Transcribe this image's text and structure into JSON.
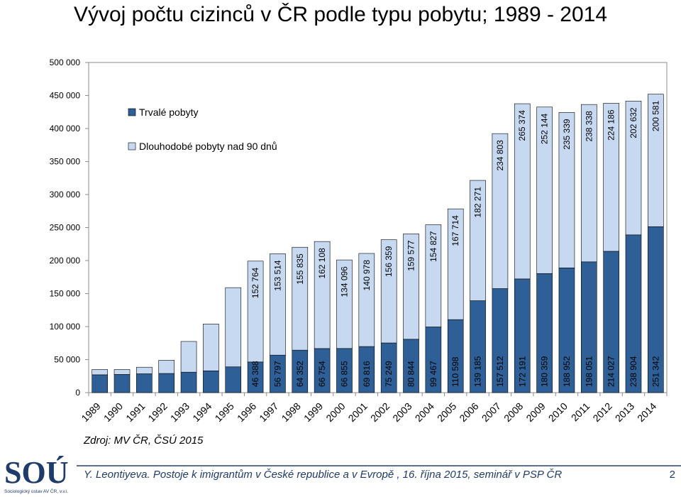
{
  "title": "Vývoj počtu cizinců v ČR podle typu pobytu; 1989 - 2014",
  "source": "Zdroj: MV ČR, ČSÚ 2015",
  "footer": {
    "text": "Y. Leontiyeva. Postoje k imigrantům v České republice a v Evropě , 16. října 2015, seminář v PSP ČR",
    "page_number": "2",
    "logo_subtitle": "Sociologický ústav AV ČR, v.v.i."
  },
  "colors": {
    "permanent": "#2e5f96",
    "long_term": "#c6d9f1",
    "bar_edge": "#000000",
    "axis": "#8c8c8c",
    "logo": "#1f3b6a"
  },
  "chart_data": {
    "type": "bar",
    "stacked": true,
    "title": "Vývoj počtu cizinců v ČR podle typu pobytu; 1989 - 2014",
    "xlabel": "",
    "ylabel": "",
    "ylim": [
      0,
      500000
    ],
    "yticks": [
      0,
      50000,
      100000,
      150000,
      200000,
      250000,
      300000,
      350000,
      400000,
      450000,
      500000
    ],
    "ytick_labels": [
      "0",
      "50 000",
      "100 000",
      "150 000",
      "200 000",
      "250 000",
      "300 000",
      "350 000",
      "400 000",
      "450 000",
      "500 000"
    ],
    "grid": false,
    "legend_position": "top-left",
    "categories": [
      "1989",
      "1990",
      "1991",
      "1992",
      "1993",
      "1994",
      "1995",
      "1996",
      "1997",
      "1998",
      "1999",
      "2000",
      "2001",
      "2002",
      "2003",
      "2004",
      "2005",
      "2006",
      "2007",
      "2008",
      "2009",
      "2010",
      "2011",
      "2012",
      "2013",
      "2014"
    ],
    "series": [
      {
        "name": "Trvalé pobyty",
        "values": [
          27000,
          27500,
          28500,
          29000,
          31000,
          33000,
          39000,
          46388,
          56797,
          64352,
          66754,
          66855,
          69816,
          75249,
          80844,
          99467,
          110598,
          139185,
          157512,
          172191,
          180359,
          188952,
          198051,
          214027,
          238904,
          251342
        ],
        "labels": [
          "",
          "",
          "",
          "",
          "",
          "",
          "",
          "46 388",
          "56 797",
          "64 352",
          "66 754",
          "66 855",
          "69 816",
          "75 249",
          "80 844",
          "99 467",
          "110 598",
          "139 185",
          "157 512",
          "172 191",
          "180 359",
          "188 952",
          "198 051",
          "214 027",
          "238 904",
          "251 342"
        ]
      },
      {
        "name": "Dlouhodobé pobyty nad 90 dnů",
        "values": [
          8000,
          7500,
          10000,
          20000,
          46500,
          71000,
          120000,
          152764,
          153514,
          155835,
          162108,
          134096,
          140978,
          156359,
          159577,
          154827,
          167714,
          182271,
          234803,
          265374,
          252144,
          235339,
          238338,
          224186,
          202632,
          200581
        ],
        "labels": [
          "",
          "",
          "",
          "",
          "",
          "",
          "",
          "152 764",
          "153 514",
          "155 835",
          "162 108",
          "134 096",
          "140 978",
          "156 359",
          "159 577",
          "154 827",
          "167 714",
          "182 271",
          "234 803",
          "265 374",
          "252 144",
          "235 339",
          "238 338",
          "224 186",
          "202 632",
          "200 581"
        ]
      }
    ]
  }
}
